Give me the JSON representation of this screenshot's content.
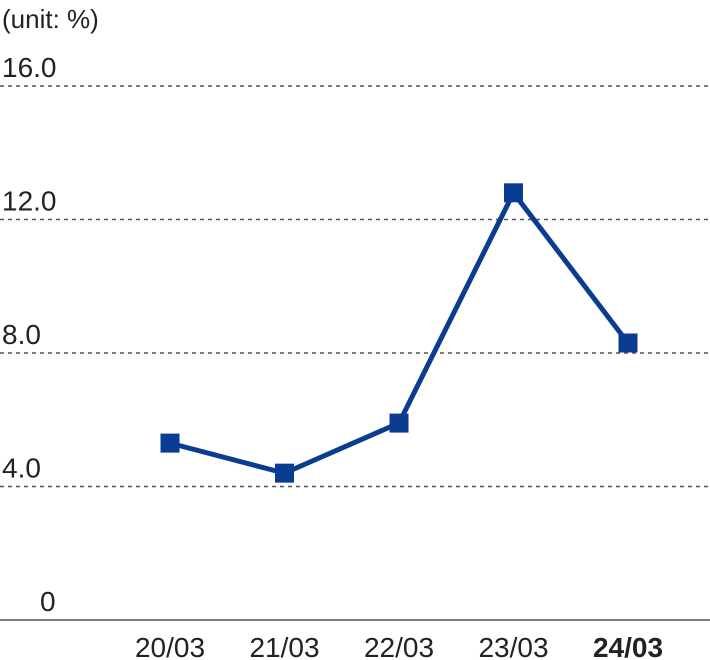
{
  "chart_data": {
    "type": "line",
    "unit_label": "(unit: %)",
    "categories": [
      "20/03",
      "21/03",
      "22/03",
      "23/03",
      "24/03"
    ],
    "highlight_category": "24/03",
    "series": [
      {
        "values": [
          5.3,
          4.4,
          5.9,
          12.8,
          8.3
        ],
        "color": "#0a3d91"
      }
    ],
    "ylim": [
      0,
      16
    ],
    "yticks": [
      0,
      4,
      8,
      12,
      16
    ],
    "ytick_labels": [
      "0",
      "4.0",
      "8.0",
      "12.0",
      "16.0"
    ],
    "grid": true,
    "marker": "square"
  }
}
